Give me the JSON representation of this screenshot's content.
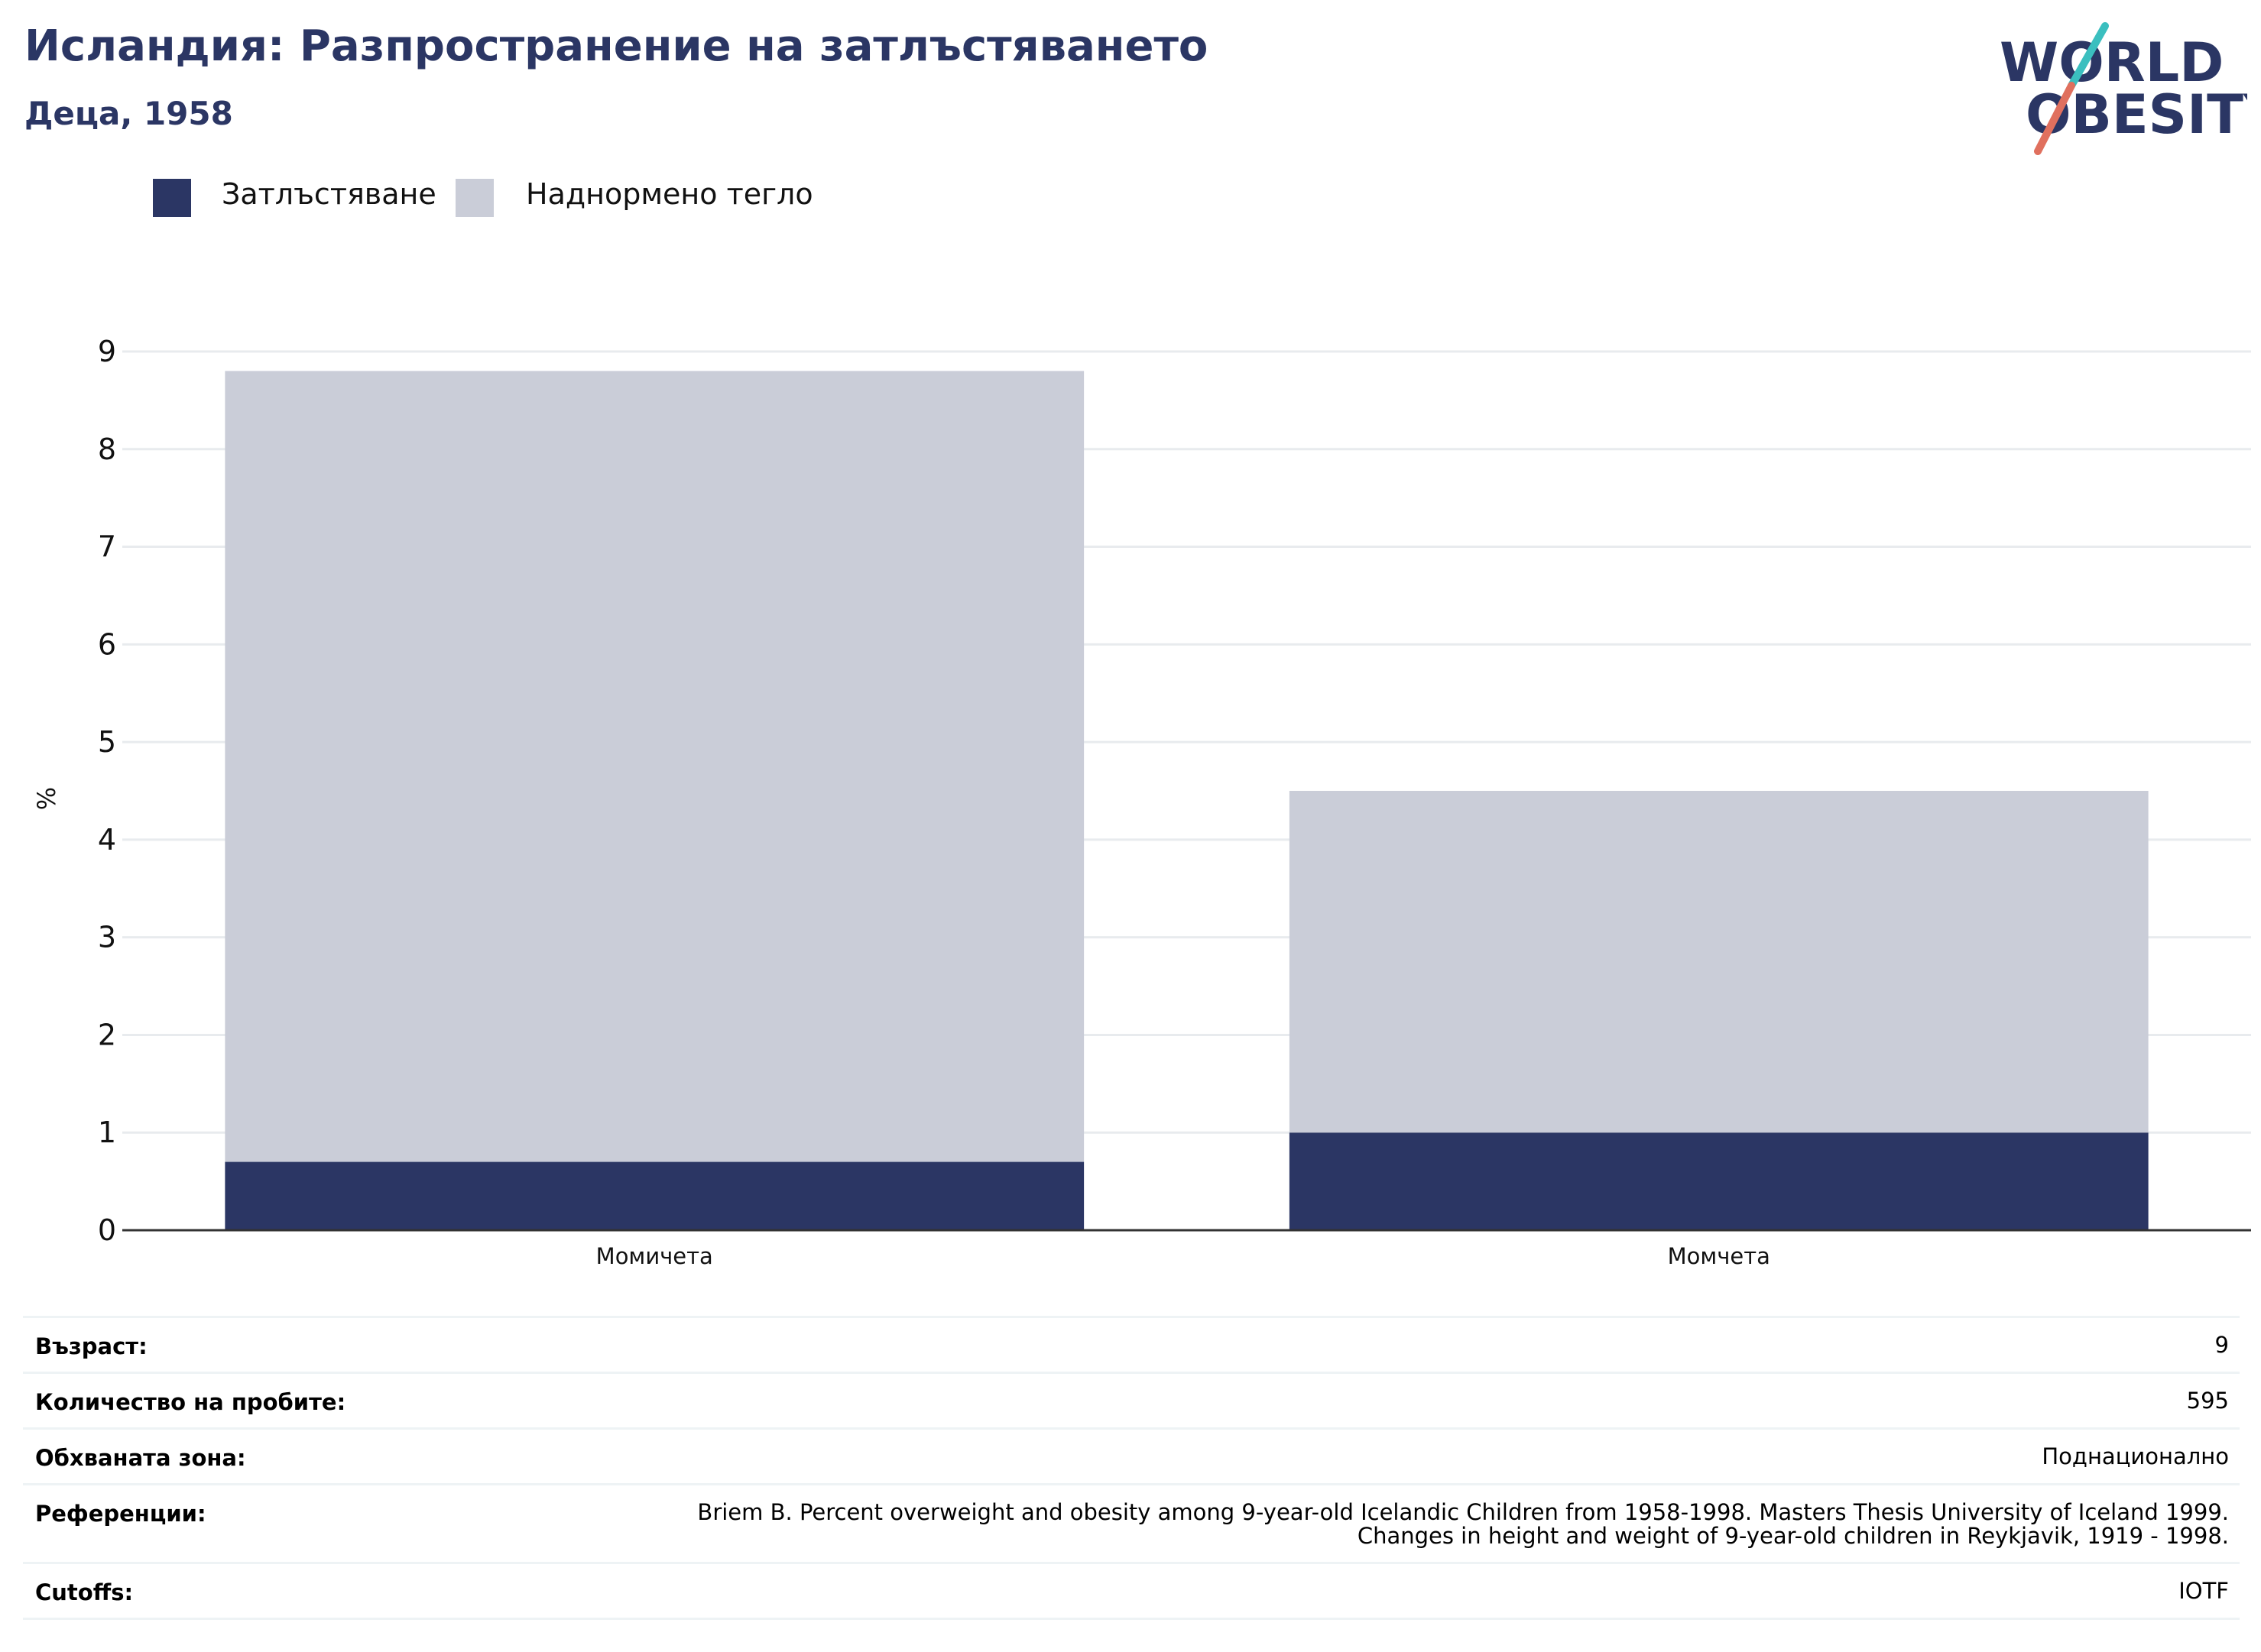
{
  "header": {
    "title": "Исландия: Разпространение на затлъстяването",
    "subtitle": "Деца, 1958"
  },
  "logo": {
    "line1": "WORLD",
    "line2": "OBESITY"
  },
  "colors": {
    "obesity": "#2b3664",
    "overweight": "#cacdd8",
    "title": "#2b3664",
    "logo_teal": "#3bbfbf",
    "logo_coral": "#e0705e"
  },
  "legend": [
    {
      "label": "Затлъстяване",
      "color": "#2b3664"
    },
    {
      "label": "Наднормено тегло",
      "color": "#cacdd8"
    }
  ],
  "chart_data": {
    "type": "bar",
    "stacked": true,
    "categories": [
      "Момичета",
      "Момчета"
    ],
    "series": [
      {
        "name": "Затлъстяване",
        "values": [
          0.7,
          1.0
        ]
      },
      {
        "name": "Наднормено тегло",
        "values": [
          8.1,
          3.5
        ]
      }
    ],
    "totals": [
      8.8,
      4.5
    ],
    "ylabel": "%",
    "ylim": [
      0,
      9
    ],
    "yticks": [
      "0",
      "1",
      "2",
      "3",
      "4",
      "5",
      "6",
      "7",
      "8",
      "9"
    ],
    "grid": true,
    "legend_position": "top-left"
  },
  "info": [
    {
      "label": "Възраст:",
      "value": [
        "9"
      ]
    },
    {
      "label": "Количество на пробите:",
      "value": [
        "595"
      ]
    },
    {
      "label": "Обхваната зона:",
      "value": [
        "Поднационално"
      ]
    },
    {
      "label": "Референции:",
      "value": [
        "Briem B. Percent overweight and obesity among 9-year-old Icelandic Children from 1958-1998. Masters Thesis University of Iceland 1999.",
        "Changes in height and weight of 9-year-old children in Reykjavik, 1919 - 1998."
      ]
    },
    {
      "label": "Cutoffs:",
      "value": [
        "IOTF"
      ]
    }
  ]
}
